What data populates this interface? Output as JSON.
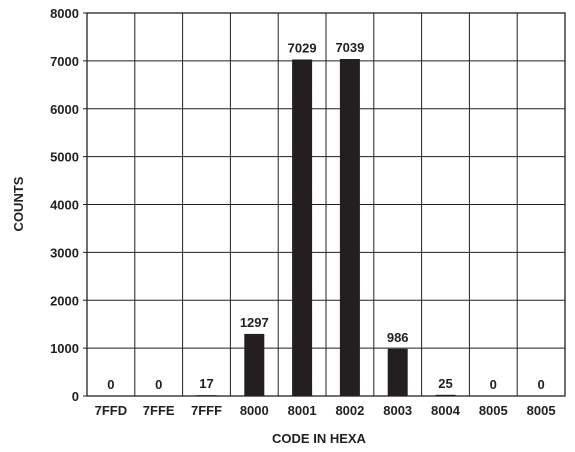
{
  "chart_data": {
    "type": "bar",
    "categories": [
      "7FFD",
      "7FFE",
      "7FFF",
      "8000",
      "8001",
      "8002",
      "8003",
      "8004",
      "8005",
      "8005"
    ],
    "values": [
      0,
      0,
      17,
      1297,
      7029,
      7039,
      986,
      25,
      0,
      0
    ],
    "data_labels": [
      "0",
      "0",
      "17",
      "1297",
      "7029",
      "7039",
      "986",
      "25",
      "0",
      "0"
    ],
    "xlabel": "CODE IN HEXA",
    "ylabel": "COUNTS",
    "ylim": [
      0,
      8000
    ],
    "yticks": [
      "0",
      "1000",
      "2000",
      "3000",
      "4000",
      "5000",
      "6000",
      "7000",
      "8000"
    ],
    "grid": true,
    "bar_color": "#231f20",
    "grid_color": "#231f20"
  }
}
